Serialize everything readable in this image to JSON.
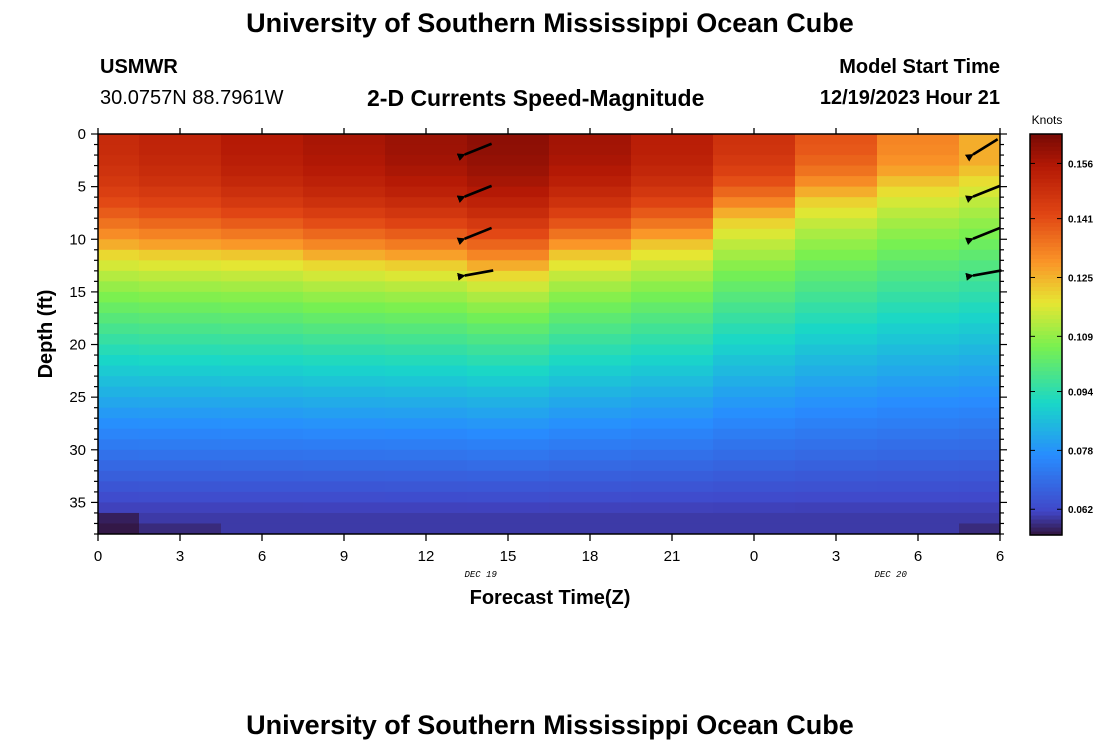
{
  "header": {
    "title": "University of Southern Mississippi Ocean Cube",
    "station": "USMWR",
    "coords": "30.0757N  88.7961W",
    "plot_title": "2-D Currents Speed-Magnitude",
    "model_label": "Model Start Time",
    "model_time": "12/19/2023 Hour 21"
  },
  "footer": {
    "title": "University of Southern Mississippi Ocean Cube"
  },
  "chart_data": {
    "type": "heatmap",
    "title": "2-D Currents Speed-Magnitude",
    "xlabel": "Forecast Time(Z)",
    "ylabel": "Depth (ft)",
    "x_hours": [
      21,
      24,
      27,
      30,
      33,
      36,
      39,
      42,
      45,
      48,
      51,
      54
    ],
    "x_range": [
      21,
      54
    ],
    "x_tick_hours": [
      21,
      24,
      27,
      30,
      33,
      36,
      39,
      42,
      45,
      48,
      51,
      54
    ],
    "x_tick_labels": [
      "0",
      "3",
      "6",
      "9",
      "12",
      "15",
      "18",
      "21",
      "0",
      "3",
      "6"
    ],
    "x_ticks_shown": [
      21,
      24,
      27,
      30,
      33,
      36,
      39,
      42,
      45,
      48,
      51
    ],
    "date_labels": [
      {
        "hour": 35,
        "text": "DEC 19"
      },
      {
        "hour": 50,
        "text": "DEC 20"
      }
    ],
    "y_range": [
      0,
      38
    ],
    "y_ticks": [
      0,
      5,
      10,
      15,
      20,
      25,
      30,
      35
    ],
    "depth_profile_surface_ft": [
      0,
      4,
      8,
      11,
      13,
      16,
      20,
      25,
      30,
      35,
      38
    ],
    "column_peak_speed_knots": [
      0.15,
      0.152,
      0.155,
      0.157,
      0.159,
      0.161,
      0.158,
      0.154,
      0.148,
      0.14,
      0.132,
      0.126
    ],
    "column_transition_depth_ft": [
      10.5,
      10.8,
      11.0,
      11.5,
      11.8,
      12.5,
      11.0,
      10.0,
      7.5,
      5.5,
      4.0,
      3.0
    ],
    "bottom_speed_knots": 0.06,
    "colorbar": {
      "label": "Knots",
      "ticks": [
        0.062,
        0.078,
        0.094,
        0.109,
        0.125,
        0.141,
        0.156
      ],
      "range": [
        0.055,
        0.164
      ]
    },
    "vectors": [
      {
        "hour": 35,
        "depth": 1,
        "direction": "WSW"
      },
      {
        "hour": 35,
        "depth": 5,
        "direction": "WSW"
      },
      {
        "hour": 35,
        "depth": 9,
        "direction": "WSW"
      },
      {
        "hour": 35,
        "depth": 12.5,
        "direction": "W"
      },
      {
        "hour": 54,
        "depth": 1,
        "direction": "SW"
      },
      {
        "hour": 54,
        "depth": 5,
        "direction": "WSW"
      },
      {
        "hour": 54,
        "depth": 9,
        "direction": "WSW"
      },
      {
        "hour": 54,
        "depth": 12.5,
        "direction": "W"
      }
    ]
  }
}
